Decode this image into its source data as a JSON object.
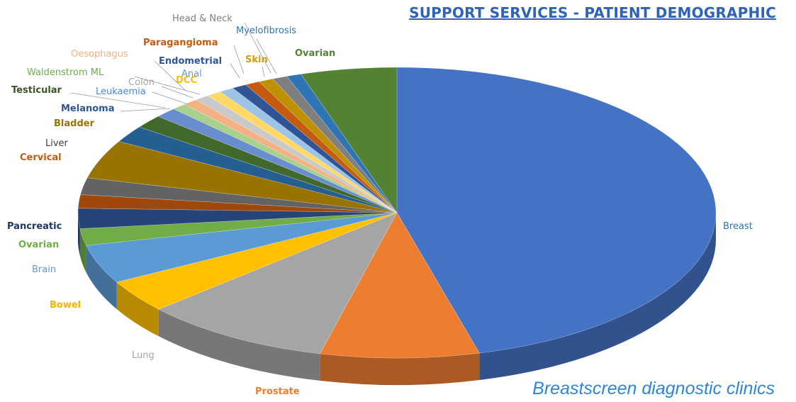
{
  "title": "SUPPORT SERVICES - PATIENT DEMOGRAPHIC",
  "footer": "Breastscreen diagnostic clinics",
  "chart_data": {
    "type": "pie",
    "style": "3d",
    "title": "SUPPORT SERVICES - PATIENT DEMOGRAPHIC",
    "categories": [
      "Breast",
      "Prostate",
      "Lung",
      "Bowel",
      "Brain",
      "Ovarian",
      "Pancreatic",
      "Cervical",
      "Liver",
      "Bladder",
      "Melanoma",
      "Testicular",
      "Leukaemia",
      "Waldenstrom ML",
      "Oesophagus",
      "Colon",
      "DCC",
      "Anal",
      "Endometrial",
      "Paragangioma",
      "Skin",
      "Head & Neck",
      "Myelofibrosis",
      "Ovarian"
    ],
    "values": [
      49.0,
      8.6,
      10.2,
      3.9,
      4.6,
      2.0,
      2.4,
      1.6,
      2.0,
      4.6,
      2.0,
      1.6,
      1.2,
      0.8,
      0.8,
      0.8,
      0.8,
      0.8,
      0.8,
      0.8,
      0.8,
      0.8,
      0.8,
      5.2
    ],
    "colors": [
      "#4472c4",
      "#ed7d31",
      "#a5a5a5",
      "#ffc000",
      "#5b9bd5",
      "#70ad47",
      "#264478",
      "#9e480e",
      "#636363",
      "#997300",
      "#255e91",
      "#43682b",
      "#698ed0",
      "#a9d18e",
      "#f4b183",
      "#c9c9c9",
      "#ffd966",
      "#9dc3e6",
      "#2f5597",
      "#c55a11",
      "#bf9000",
      "#7f7f7f",
      "#2e75b6",
      "#548235"
    ],
    "label_colors": [
      "#2e75b6",
      "#ed7d31",
      "#a5a5a5",
      "#f4b400",
      "#5b9bd5",
      "#70ad47",
      "#1f3864",
      "#c55a11",
      "#404040",
      "#997300",
      "#2f5597",
      "#385723",
      "#4a86e8",
      "#70ad47",
      "#f4b183",
      "#a5a5a5",
      "#ffc000",
      "#5b9bd5",
      "#2f5597",
      "#c55a11",
      "#d39e00",
      "#7f7f7f",
      "#2e75b6",
      "#548235"
    ],
    "label_bold": [
      false,
      true,
      false,
      true,
      false,
      true,
      true,
      true,
      false,
      true,
      true,
      true,
      false,
      false,
      false,
      false,
      true,
      false,
      true,
      true,
      true,
      false,
      false,
      true
    ],
    "legend": "none"
  }
}
